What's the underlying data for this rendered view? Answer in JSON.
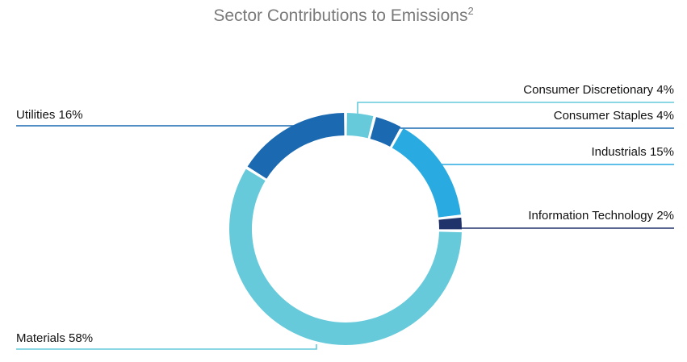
{
  "chart_data": {
    "type": "pie",
    "subtype": "donut",
    "title": "Sector Contributions to Emissions",
    "title_footnote": "2",
    "slices": [
      {
        "label": "Consumer Discretionary",
        "value": 4,
        "color": "#66cadb",
        "side": "right"
      },
      {
        "label": "Consumer Staples",
        "value": 4,
        "color": "#1a69b1",
        "side": "right"
      },
      {
        "label": "Industrials",
        "value": 15,
        "color": "#29abe2",
        "side": "right"
      },
      {
        "label": "Information Technology",
        "value": 2,
        "color": "#21336b",
        "side": "right"
      },
      {
        "label": "Materials",
        "value": 58,
        "color": "#66cadb",
        "side": "left"
      },
      {
        "label": "Utilities",
        "value": 16,
        "color": "#1a69b1",
        "side": "left"
      }
    ]
  }
}
